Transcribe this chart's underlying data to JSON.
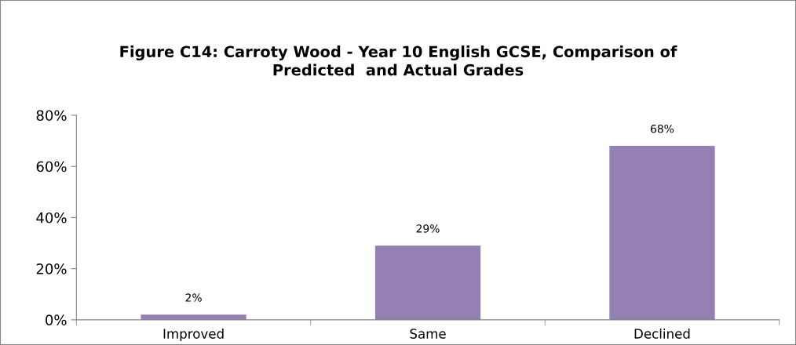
{
  "chart_data": {
    "type": "bar",
    "title": "Figure C14: Carroty Wood - Year 10 English GCSE, Comparison of\nPredicted  and Actual Grades",
    "categories": [
      "Improved",
      "Same",
      "Declined"
    ],
    "values": [
      2,
      29,
      68
    ],
    "value_labels": [
      "2%",
      "29%",
      "68%"
    ],
    "color": "#9580b4",
    "ylim": [
      0,
      80
    ],
    "yticks": [
      {
        "value": 0,
        "label": "0%"
      },
      {
        "value": 20,
        "label": "20%"
      },
      {
        "value": 40,
        "label": "40%"
      },
      {
        "value": 60,
        "label": "60%"
      },
      {
        "value": 80,
        "label": "80%"
      }
    ],
    "grid": false,
    "legend": false
  }
}
